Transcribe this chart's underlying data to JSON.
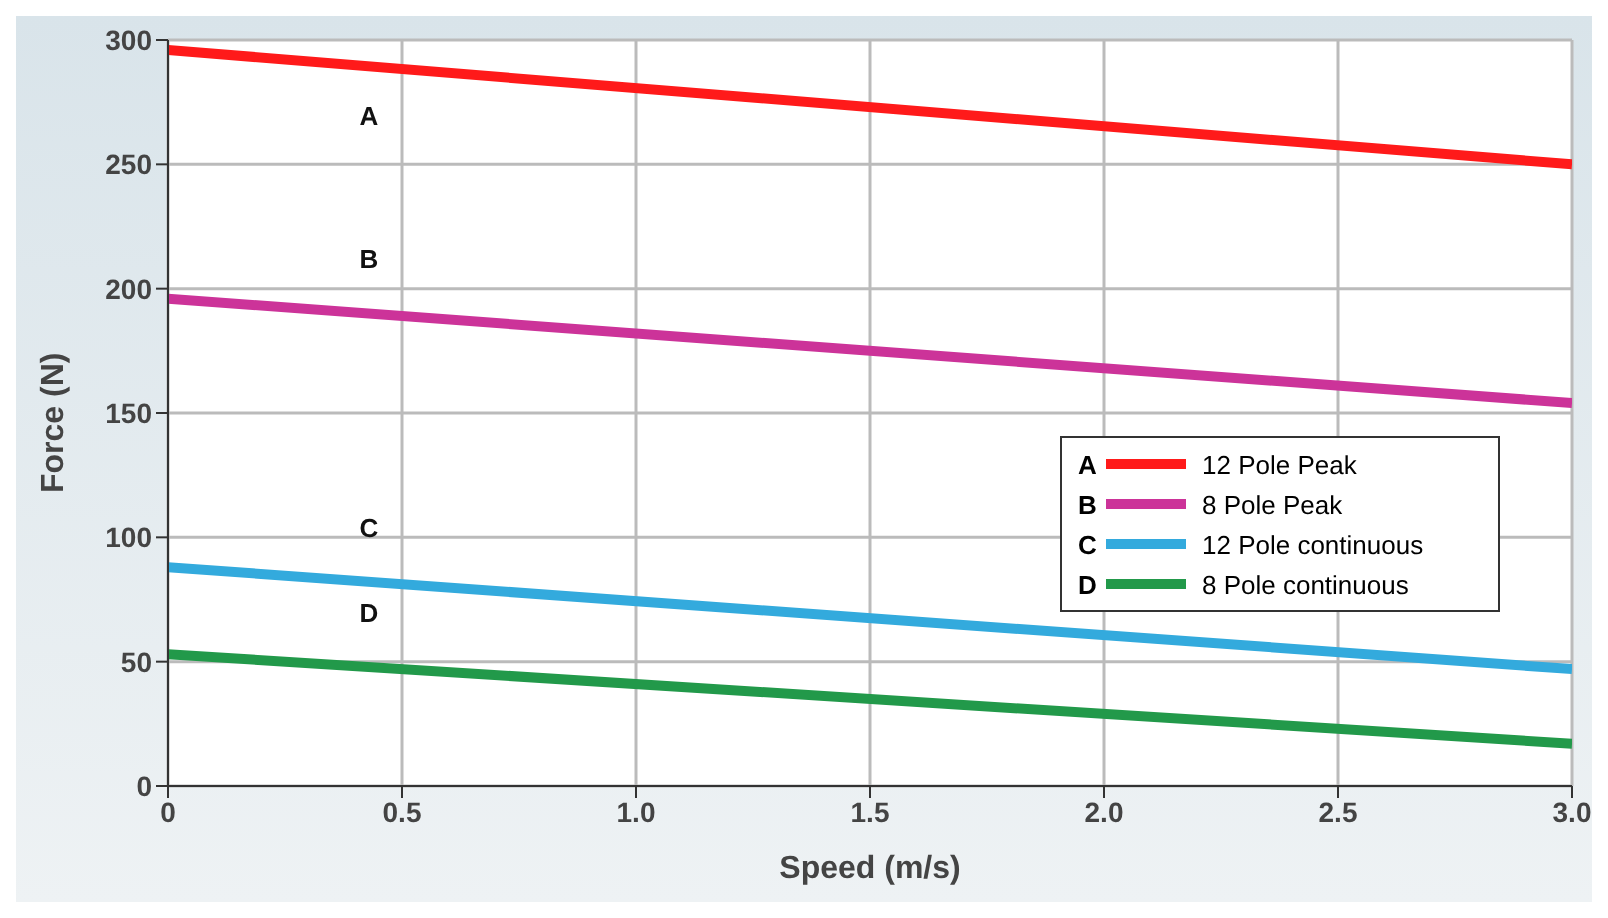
{
  "chart_data": {
    "type": "line",
    "xlabel": "Speed (m/s)",
    "ylabel": "Force (N)",
    "x": [
      0,
      3
    ],
    "series": [
      {
        "name": "12 Pole Peak",
        "color": "#ff1a1a",
        "values": [
          296,
          250
        ]
      },
      {
        "name": "8 Pole Peak",
        "color": "#cc3399",
        "values": [
          196,
          154
        ]
      },
      {
        "name": "12 Pole continuous",
        "color": "#33aadd",
        "values": [
          88,
          47
        ]
      },
      {
        "name": "8 Pole continuous",
        "color": "#22994a",
        "values": [
          53,
          17
        ]
      }
    ],
    "xlim": [
      0,
      3
    ],
    "xticks": [
      0,
      0.5,
      {
        "value": 1,
        "label": "1.0"
      },
      1.5,
      {
        "value": 2,
        "label": "2.0"
      },
      2.5,
      {
        "value": 3,
        "label": "3.0"
      }
    ],
    "ylim": [
      0,
      300
    ],
    "yticks": [
      0,
      50,
      100,
      150,
      200,
      250,
      300
    ],
    "grid": true,
    "legend": "right",
    "marker": "none",
    "line_style": "solid",
    "annotations": [
      "A",
      "B",
      "C",
      "D"
    ]
  }
}
